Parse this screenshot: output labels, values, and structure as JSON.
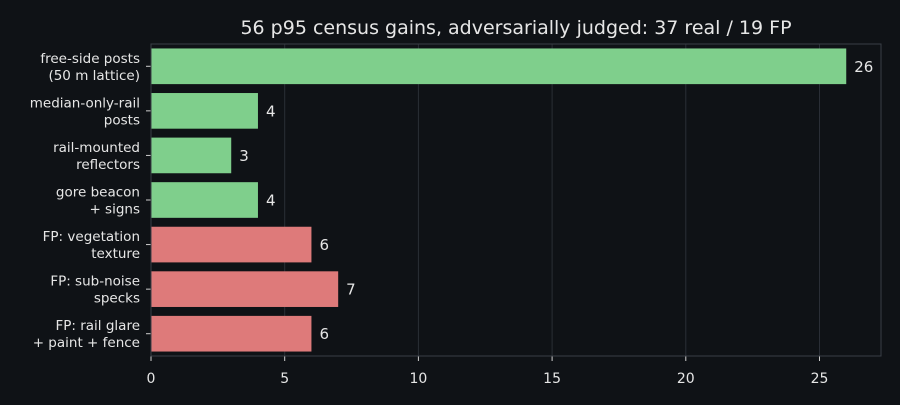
{
  "chart_data": {
    "type": "bar",
    "orientation": "horizontal",
    "title": "56 p95 census gains, adversarially judged: 37 real / 19 FP",
    "xlabel": "",
    "ylabel": "",
    "xlim": [
      0,
      27.3
    ],
    "xticks": [
      0,
      5,
      10,
      15,
      20,
      25
    ],
    "grid": "vertical",
    "categories": [
      [
        "free-side posts",
        "(50 m lattice)"
      ],
      [
        "median-only-rail",
        "posts"
      ],
      [
        "rail-mounted",
        "reflectors"
      ],
      [
        "gore beacon",
        "+ signs"
      ],
      [
        "FP: vegetation",
        "texture"
      ],
      [
        "FP: sub-noise",
        "specks"
      ],
      [
        "FP: rail glare",
        "+ paint + fence"
      ]
    ],
    "values": [
      26,
      4,
      3,
      4,
      6,
      7,
      6
    ],
    "bar_colors": [
      "#7fcf8c",
      "#7fcf8c",
      "#7fcf8c",
      "#7fcf8c",
      "#de7a7a",
      "#de7a7a",
      "#de7a7a"
    ]
  }
}
